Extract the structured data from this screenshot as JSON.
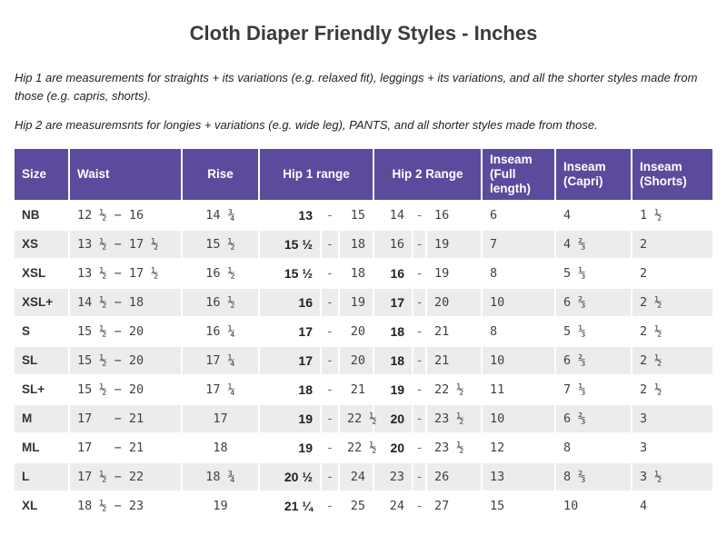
{
  "title": "Cloth Diaper Friendly Styles - Inches",
  "notes": [
    "Hip 1 are measurements for straights + its variations (e.g. relaxed fit), leggings + its variations, and all the shorter styles made from those (e.g. capris, shorts).",
    "Hip 2 are measuremsnts for longies + variations (e.g. wide leg), PANTS, and all shorter styles made from those."
  ],
  "colors": {
    "header_bg": "#5c4b9c",
    "header_text": "#ffffff",
    "stripe_bg": "#ececec",
    "body_text": "#3f4245",
    "bold_text": "#202124"
  },
  "table": {
    "headers": [
      "Size",
      "Waist",
      "Rise",
      "Hip 1 range",
      "Hip 2 Range",
      "Inseam (Full length)",
      "Inseam (Capri)",
      "Inseam (Shorts)"
    ],
    "range_separator": "-",
    "rows": [
      {
        "size": "NB",
        "waist": "12 ½ − 16",
        "rise": "14 ¾",
        "hip1_from": "13",
        "hip1_from_bold": true,
        "hip1_to": "15",
        "hip2_from": "14",
        "hip2_from_bold": false,
        "hip2_to": "16",
        "inseam_full": "6",
        "inseam_capri": "4",
        "inseam_shorts": "1 ½"
      },
      {
        "size": "XS",
        "waist": "13 ½ − 17 ½",
        "rise": "15 ½",
        "hip1_from": "15 ½",
        "hip1_from_bold": true,
        "hip1_to": "18",
        "hip2_from": "16",
        "hip2_from_bold": false,
        "hip2_to": "19",
        "inseam_full": "7",
        "inseam_capri": "4 ⅔",
        "inseam_shorts": "2"
      },
      {
        "size": "XSL",
        "waist": "13 ½ − 17 ½",
        "rise": "16 ½",
        "hip1_from": "15 ½",
        "hip1_from_bold": true,
        "hip1_to": "18",
        "hip2_from": "16",
        "hip2_from_bold": true,
        "hip2_to": "19",
        "inseam_full": "8",
        "inseam_capri": "5 ⅓",
        "inseam_shorts": "2"
      },
      {
        "size": "XSL+",
        "waist": "14 ½ − 18",
        "rise": "16 ½",
        "hip1_from": "16",
        "hip1_from_bold": true,
        "hip1_to": "19",
        "hip2_from": "17",
        "hip2_from_bold": true,
        "hip2_to": "20",
        "inseam_full": "10",
        "inseam_capri": "6 ⅔",
        "inseam_shorts": "2 ½"
      },
      {
        "size": "S",
        "waist": "15 ½ − 20",
        "rise": "16 ¼",
        "hip1_from": "17",
        "hip1_from_bold": true,
        "hip1_to": "20",
        "hip2_from": "18",
        "hip2_from_bold": true,
        "hip2_to": "21",
        "inseam_full": "8",
        "inseam_capri": "5 ⅓",
        "inseam_shorts": "2 ½"
      },
      {
        "size": "SL",
        "waist": "15 ½ − 20",
        "rise": "17 ¼",
        "hip1_from": "17",
        "hip1_from_bold": true,
        "hip1_to": "20",
        "hip2_from": "18",
        "hip2_from_bold": true,
        "hip2_to": "21",
        "inseam_full": "10",
        "inseam_capri": "6 ⅔",
        "inseam_shorts": "2 ½"
      },
      {
        "size": "SL+",
        "waist": "15 ½ − 20",
        "rise": "17 ¼",
        "hip1_from": "18",
        "hip1_from_bold": true,
        "hip1_to": "21",
        "hip2_from": "19",
        "hip2_from_bold": true,
        "hip2_to": "22 ½",
        "inseam_full": "11",
        "inseam_capri": "7 ⅓",
        "inseam_shorts": "2 ½"
      },
      {
        "size": "M",
        "waist": "17   − 21",
        "rise": "17",
        "hip1_from": "19",
        "hip1_from_bold": true,
        "hip1_to": "22 ½",
        "hip2_from": "20",
        "hip2_from_bold": true,
        "hip2_to": "23 ½",
        "inseam_full": "10",
        "inseam_capri": "6 ⅔",
        "inseam_shorts": "3"
      },
      {
        "size": "ML",
        "waist": "17   − 21",
        "rise": "18",
        "hip1_from": "19",
        "hip1_from_bold": true,
        "hip1_to": "22 ½",
        "hip2_from": "20",
        "hip2_from_bold": true,
        "hip2_to": "23 ½",
        "inseam_full": "12",
        "inseam_capri": "8",
        "inseam_shorts": "3"
      },
      {
        "size": "L",
        "waist": "17 ½ − 22",
        "rise": "18 ¾",
        "hip1_from": "20 ½",
        "hip1_from_bold": true,
        "hip1_to": "24",
        "hip2_from": "23",
        "hip2_from_bold": false,
        "hip2_to": "26",
        "inseam_full": "13",
        "inseam_capri": "8 ⅔",
        "inseam_shorts": "3 ½"
      },
      {
        "size": "XL",
        "waist": "18 ½ − 23",
        "rise": "19",
        "hip1_from": "21 ¼",
        "hip1_from_bold": true,
        "hip1_to": "25",
        "hip2_from": "24",
        "hip2_from_bold": false,
        "hip2_to": "27",
        "inseam_full": "15",
        "inseam_capri": "10",
        "inseam_shorts": "4"
      }
    ]
  }
}
